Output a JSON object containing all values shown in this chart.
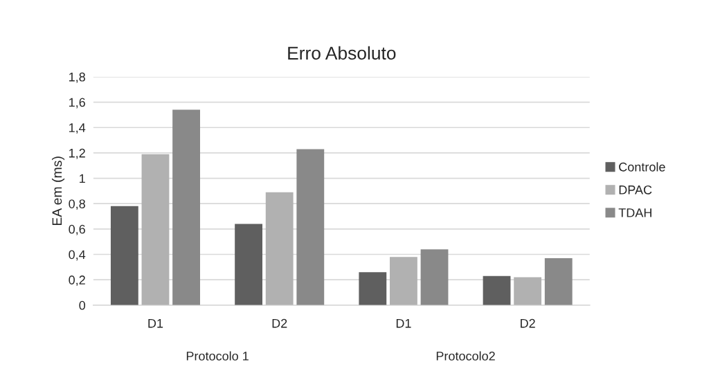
{
  "chart_data": {
    "type": "bar",
    "title": "Erro Absoluto",
    "ylabel": "EA em (ms)",
    "categories": [
      "D1",
      "D2",
      "D1",
      "D2"
    ],
    "annotations": [
      "Protocolo 1",
      "Protocolo2"
    ],
    "series": [
      {
        "name": "Controle",
        "color": "#5f5f5f",
        "values": [
          0.78,
          0.64,
          0.26,
          0.23
        ]
      },
      {
        "name": "DPAC",
        "color": "#b1b1b1",
        "values": [
          1.19,
          0.89,
          0.38,
          0.22
        ]
      },
      {
        "name": "TDAH",
        "color": "#898989",
        "values": [
          1.54,
          1.23,
          0.44,
          0.37
        ]
      }
    ],
    "ylim": [
      0,
      1.8
    ],
    "yticks": [
      {
        "value": 0,
        "label": "0"
      },
      {
        "value": 0.2,
        "label": "0,2"
      },
      {
        "value": 0.4,
        "label": "0,4"
      },
      {
        "value": 0.6,
        "label": "0,6"
      },
      {
        "value": 0.8,
        "label": "0,8"
      },
      {
        "value": 1,
        "label": "1"
      },
      {
        "value": 1.2,
        "label": "1,2"
      },
      {
        "value": 1.4,
        "label": "1,4"
      },
      {
        "value": 1.6,
        "label": "1,6"
      },
      {
        "value": 1.8,
        "label": "1,8"
      }
    ],
    "grid": "y",
    "legend": "right"
  }
}
